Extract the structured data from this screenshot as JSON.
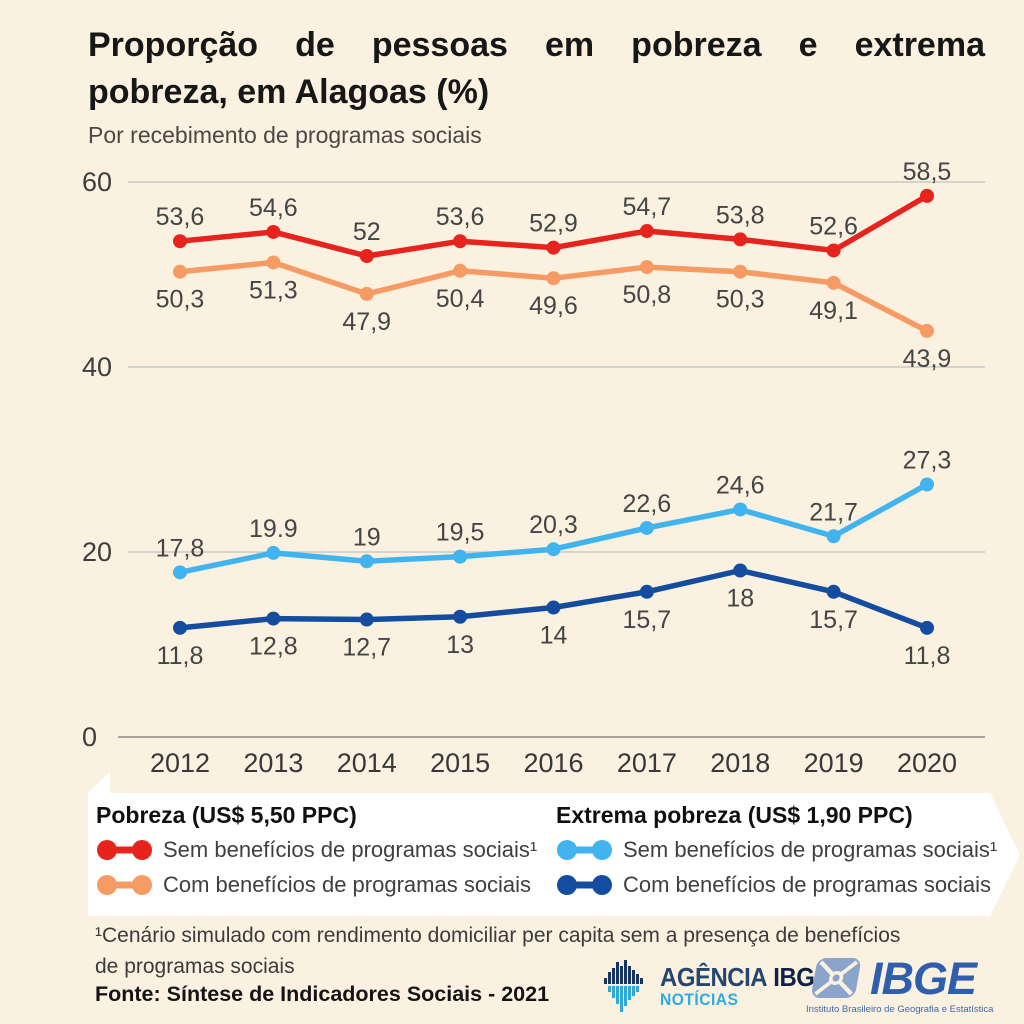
{
  "header": {
    "title_line1": "Proporção de pessoas em pobreza e extrema",
    "title_line2": "pobreza, em Alagoas (%)",
    "subtitle": "Por recebimento de programas sociais"
  },
  "chart_data": {
    "type": "line",
    "title": "Proporção de pessoas em pobreza e extrema pobreza, em Alagoas (%)",
    "subtitle": "Por recebimento de programas sociais",
    "categories": [
      "2012",
      "2013",
      "2014",
      "2015",
      "2016",
      "2017",
      "2018",
      "2019",
      "2020"
    ],
    "ylim": [
      0,
      60
    ],
    "yticks": [
      0,
      20,
      40,
      60
    ],
    "grid": true,
    "legend_position": "bottom",
    "series": [
      {
        "name": "Pobreza (US$ 5,50 PPC) - Sem benefícios de programas sociais¹",
        "color": "#e7231d",
        "values": [
          53.6,
          54.6,
          52,
          53.6,
          52.9,
          54.7,
          53.8,
          52.6,
          58.5
        ],
        "labels": [
          "53,6",
          "54,6",
          "52",
          "53,6",
          "52,9",
          "54,7",
          "53,8",
          "52,6",
          "58,5"
        ],
        "label_position": "above"
      },
      {
        "name": "Pobreza (US$ 5,50 PPC) - Com benefícios de programas sociais",
        "color": "#f59b63",
        "values": [
          50.3,
          51.3,
          47.9,
          50.4,
          49.6,
          50.8,
          50.3,
          49.1,
          43.9
        ],
        "labels": [
          "50,3",
          "51,3",
          "47,9",
          "50,4",
          "49,6",
          "50,8",
          "50,3",
          "49,1",
          "43,9"
        ],
        "label_position": "below"
      },
      {
        "name": "Extrema pobreza (US$ 1,90 PPC) - Sem benefícios de programas sociais¹",
        "color": "#41b4ef",
        "values": [
          17.8,
          19.9,
          19,
          19.5,
          20.3,
          22.6,
          24.6,
          21.7,
          27.3
        ],
        "labels": [
          "17,8",
          "19.9",
          "19",
          "19,5",
          "20,3",
          "22,6",
          "24,6",
          "21,7",
          "27,3"
        ],
        "label_position": "above"
      },
      {
        "name": "Extrema pobreza (US$ 1,90 PPC) - Com benefícios de programas sociais",
        "color": "#144c9f",
        "values": [
          11.8,
          12.8,
          12.7,
          13,
          14,
          15.7,
          18,
          15.7,
          11.8
        ],
        "labels": [
          "11,8",
          "12,8",
          "12,7",
          "13",
          "14",
          "15,7",
          "18",
          "15,7",
          "11,8"
        ],
        "label_position": "below"
      }
    ]
  },
  "legend": {
    "groups": [
      {
        "title": "Pobreza (US$ 5,50 PPC)",
        "items": [
          {
            "label": "Sem benefícios de programas sociais¹",
            "color": "#e7231d"
          },
          {
            "label": "Com benefícios de programas sociais",
            "color": "#f59b63"
          }
        ]
      },
      {
        "title": "Extrema pobreza (US$ 1,90 PPC)",
        "items": [
          {
            "label": "Sem benefícios de programas sociais¹",
            "color": "#41b4ef"
          },
          {
            "label": "Com benefícios de programas sociais",
            "color": "#144c9f"
          }
        ]
      }
    ]
  },
  "footer": {
    "footnote_line1": "¹Cenário simulado com rendimento domiciliar per capita sem a presença de benefícios",
    "footnote_line2": "de programas sociais",
    "source": "Fonte: Síntese de Indicadores Sociais - 2021"
  },
  "logos": {
    "agencia": {
      "name_part1": "AGÊNCIA",
      "name_part2": "IBGE",
      "subtitle": "NOTÍCIAS"
    },
    "ibge": {
      "name": "IBGE",
      "subtitle": "Instituto Brasileiro de Geografia e Estatística"
    }
  },
  "colors": {
    "background": "#fbf1e1",
    "banner": "#ffffff",
    "gridline": "#ccc9c2",
    "axis_line": "#a9a59d",
    "red": "#e7231d",
    "orange": "#f59b63",
    "light_blue": "#41b4ef",
    "dark_blue": "#144c9f"
  }
}
